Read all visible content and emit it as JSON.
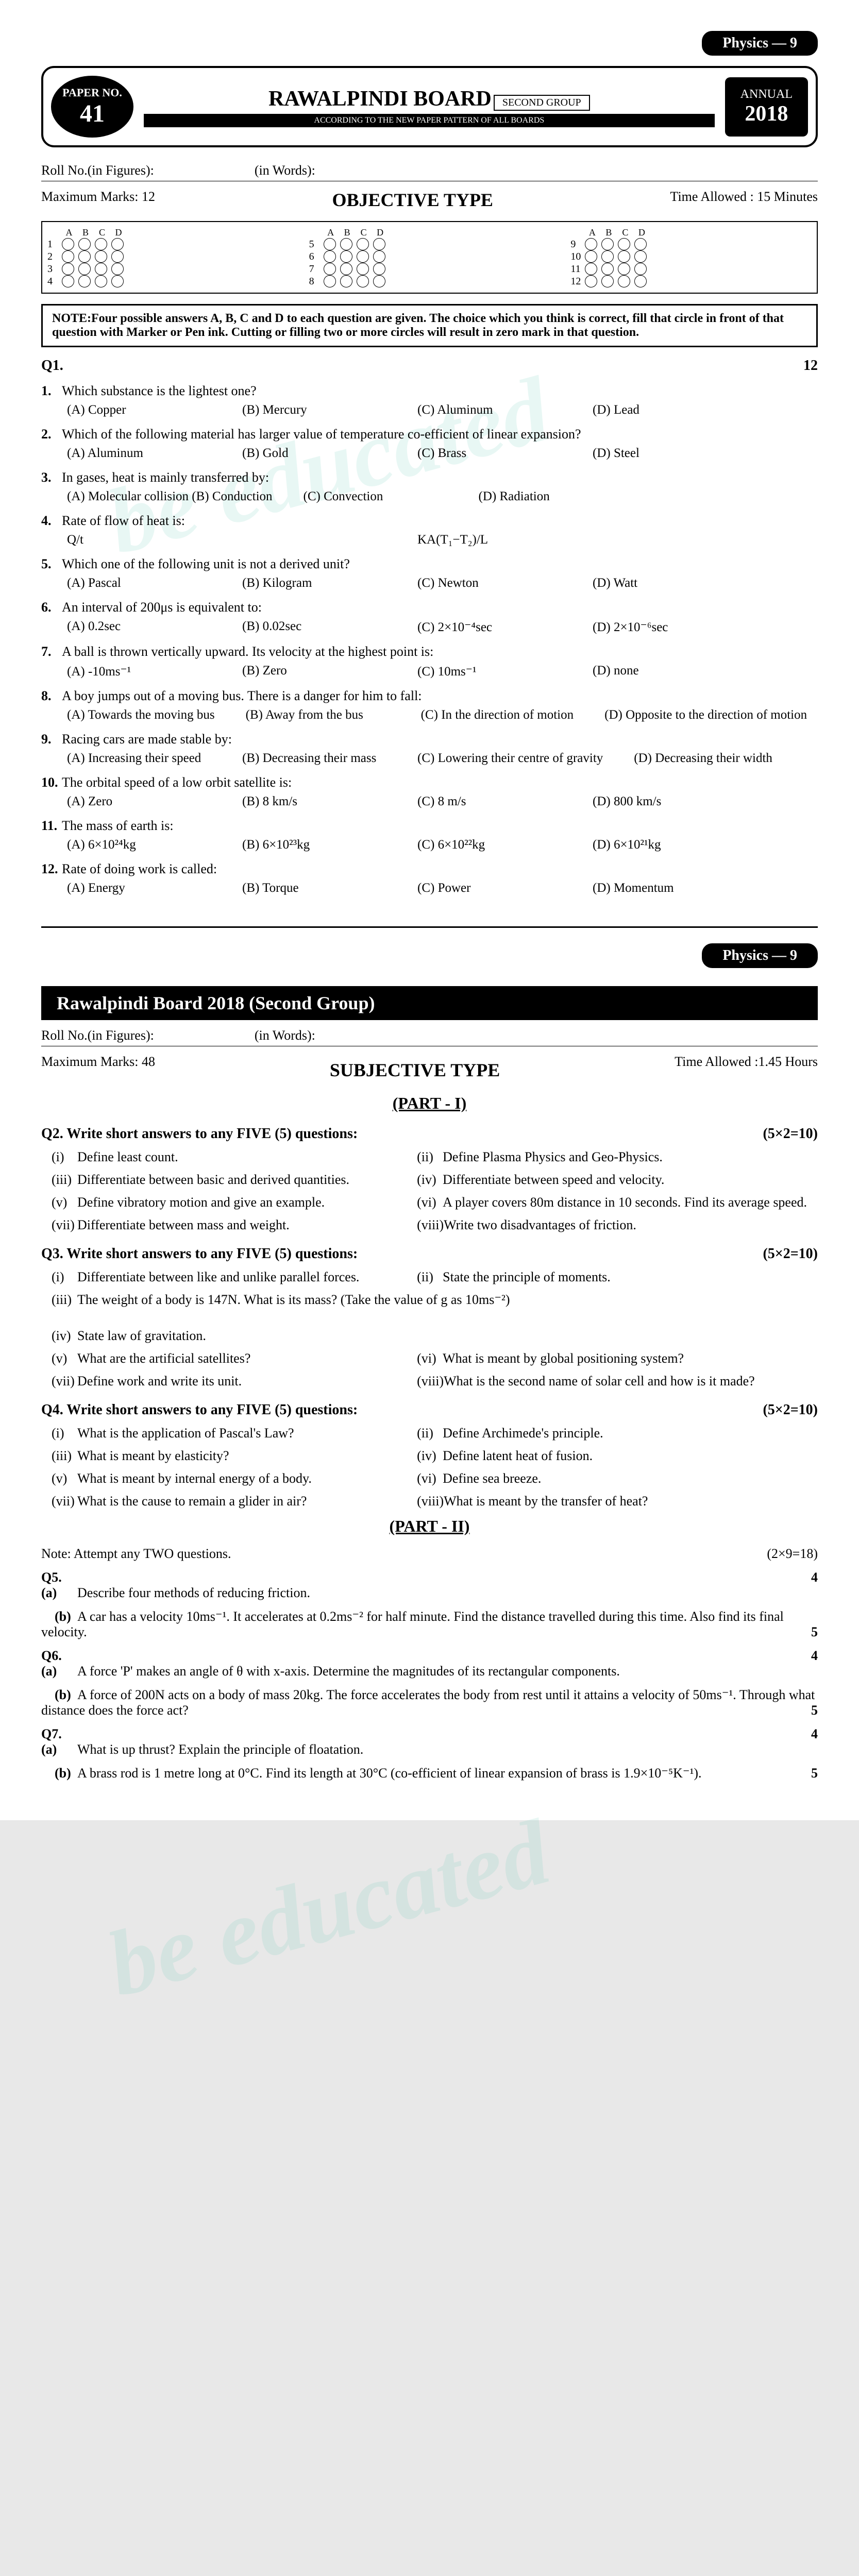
{
  "subject_badge": "Physics — 9",
  "header": {
    "paper_label": "PAPER NO.",
    "paper_num": "41",
    "board_name": "RAWALPINDI BOARD",
    "group": "SECOND GROUP",
    "pattern": "ACCORDING TO THE NEW PAPER PATTERN OF ALL BOARDS",
    "annual": "ANNUAL",
    "year": "2018"
  },
  "roll_figures": "Roll No.(in Figures):",
  "roll_words": "(in Words):",
  "objective": {
    "max_marks_label": "Maximum Marks: 12",
    "title": "OBJECTIVE TYPE",
    "time_label": "Time Allowed : 15 Minutes",
    "bubble_headers": [
      "A",
      "B",
      "C",
      "D"
    ],
    "bubble_groups": [
      [
        1,
        2,
        3,
        4
      ],
      [
        5,
        6,
        7,
        8
      ],
      [
        9,
        10,
        11,
        12
      ]
    ]
  },
  "note": "NOTE:Four possible answers A, B, C and D to each question are given. The choice which you think is correct, fill that circle in front of that question with Marker or Pen ink. Cutting or filling two or more circles will result in zero mark in that question.",
  "q1_header": {
    "label": "Q1.",
    "marks": "12"
  },
  "mcqs": [
    {
      "n": "1.",
      "text": "Which substance is the lightest one?",
      "opts": [
        "(A) Copper",
        "(B) Mercury",
        "(C) Aluminum",
        "(D) Lead"
      ]
    },
    {
      "n": "2.",
      "text": "Which of the following material has larger value of temperature co-efficient of linear expansion?",
      "opts": [
        "(A) Aluminum",
        "(B) Gold",
        "(C) Brass",
        "(D) Steel"
      ]
    },
    {
      "n": "3.",
      "text": "In gases, heat is mainly transferred by:",
      "opts": [
        "(A) Molecular collision (B) Conduction",
        "(C) Convection",
        "(D) Radiation"
      ]
    },
    {
      "n": "4.",
      "text": "Rate of flow of heat is:",
      "opts": [
        "Q/t",
        "",
        "KA(T₁−T₂)/L",
        ""
      ]
    },
    {
      "n": "5.",
      "text": "Which one of the following unit is not a derived unit?",
      "opts": [
        "(A) Pascal",
        "(B) Kilogram",
        "(C) Newton",
        "(D) Watt"
      ]
    },
    {
      "n": "6.",
      "text": "An interval of 200μs is equivalent to:",
      "opts": [
        "(A) 0.2sec",
        "(B) 0.02sec",
        "(C) 2×10⁻⁴sec",
        "(D) 2×10⁻⁶sec"
      ]
    },
    {
      "n": "7.",
      "text": "A ball is thrown vertically upward. Its velocity at the highest point is:",
      "opts": [
        "(A) -10ms⁻¹",
        "(B) Zero",
        "(C) 10ms⁻¹",
        "(D) none"
      ]
    },
    {
      "n": "8.",
      "text": "A boy jumps out of a moving bus. There is a danger for him to fall:",
      "opts": [
        "(A) Towards the moving bus",
        "(B) Away from the bus",
        "(C) In the direction of motion",
        "(D) Opposite to the direction of motion"
      ]
    },
    {
      "n": "9.",
      "text": "Racing cars are made stable by:",
      "opts": [
        "(A) Increasing their speed",
        "(B) Decreasing their mass",
        "(C) Lowering their centre of gravity",
        "(D) Decreasing their width"
      ]
    },
    {
      "n": "10.",
      "text": "The orbital speed of a low orbit satellite is:",
      "opts": [
        "(A) Zero",
        "(B) 8 km/s",
        "(C) 8 m/s",
        "(D) 800 km/s"
      ]
    },
    {
      "n": "11.",
      "text": "The mass of earth is:",
      "opts": [
        "(A) 6×10²⁴kg",
        "(B) 6×10²³kg",
        "(C) 6×10²²kg",
        "(D) 6×10²¹kg"
      ]
    },
    {
      "n": "12.",
      "text": "Rate of doing work is called:",
      "opts": [
        "(A) Energy",
        "(B) Torque",
        "(C) Power",
        "(D) Momentum"
      ]
    }
  ],
  "subjective": {
    "banner": "Rawalpindi Board 2018 (Second Group)",
    "max_marks": "Maximum Marks: 48",
    "title": "SUBJECTIVE TYPE",
    "time": "Time Allowed :1.45 Hours",
    "part1": "(PART - I)"
  },
  "short_questions": [
    {
      "header": "Q2. Write short answers to any FIVE (5) questions:",
      "marks": "(5×2=10)",
      "items": [
        {
          "r": "(i)",
          "t": "Define least count."
        },
        {
          "r": "(ii)",
          "t": "Define Plasma Physics and Geo-Physics."
        },
        {
          "r": "(iii)",
          "t": "Differentiate between basic and derived quantities."
        },
        {
          "r": "(iv)",
          "t": "Differentiate between speed and velocity."
        },
        {
          "r": "(v)",
          "t": "Define vibratory motion and give an example."
        },
        {
          "r": "(vi)",
          "t": "A player covers 80m distance in 10 seconds. Find its average speed."
        },
        {
          "r": "(vii)",
          "t": "Differentiate between mass and weight."
        },
        {
          "r": "(viii)",
          "t": "Write two disadvantages of friction."
        }
      ]
    },
    {
      "header": "Q3. Write short answers to any FIVE (5) questions:",
      "marks": "(5×2=10)",
      "items": [
        {
          "r": "(i)",
          "t": "Differentiate between like and unlike parallel forces."
        },
        {
          "r": "(ii)",
          "t": "State the principle of moments."
        },
        {
          "r": "(iii)",
          "t": "The weight of a body is 147N. What is its mass? (Take the value of g as 10ms⁻²)"
        },
        {
          "r": "(iv)",
          "t": "State law of gravitation."
        },
        {
          "r": "(v)",
          "t": "What are the artificial satellites?"
        },
        {
          "r": "(vi)",
          "t": "What is meant by global positioning system?"
        },
        {
          "r": "(vii)",
          "t": "Define work and write its unit."
        },
        {
          "r": "(viii)",
          "t": "What is the second name of solar cell and how is it made?"
        }
      ]
    },
    {
      "header": "Q4. Write short answers to any FIVE (5) questions:",
      "marks": "(5×2=10)",
      "items": [
        {
          "r": "(i)",
          "t": "What is the application of Pascal's Law?"
        },
        {
          "r": "(ii)",
          "t": "Define Archimede's principle."
        },
        {
          "r": "(iii)",
          "t": "What is meant by elasticity?"
        },
        {
          "r": "(iv)",
          "t": "Define latent heat of fusion."
        },
        {
          "r": "(v)",
          "t": "What is meant by internal energy of a body."
        },
        {
          "r": "(vi)",
          "t": "Define sea breeze."
        },
        {
          "r": "(vii)",
          "t": "What is the cause to remain a glider in air?"
        },
        {
          "r": "(viii)",
          "t": "What is meant by the transfer of heat?"
        }
      ]
    }
  ],
  "part2": {
    "title": "(PART - II)",
    "note": "Note: Attempt any TWO questions.",
    "marks": "(2×9=18)"
  },
  "long_questions": [
    {
      "q": "Q5.",
      "a": "(a)",
      "ta": "Describe four methods of reducing friction.",
      "ma": "4",
      "b": "(b)",
      "tb": "A car has a velocity 10ms⁻¹. It accelerates at 0.2ms⁻² for half minute. Find the distance travelled during this time. Also find its final velocity.",
      "mb": "5"
    },
    {
      "q": "Q6.",
      "a": "(a)",
      "ta": "A force 'P' makes an angle of θ with x-axis. Determine the magnitudes of its rectangular components.",
      "ma": "4",
      "b": "(b)",
      "tb": "A force of 200N acts on a body of mass 20kg. The force accelerates the body from rest until it attains a velocity of 50ms⁻¹. Through what distance does the force act?",
      "mb": "5"
    },
    {
      "q": "Q7.",
      "a": "(a)",
      "ta": "What is up thrust? Explain the principle of floatation.",
      "ma": "4",
      "b": "(b)",
      "tb": "A brass rod is 1 metre long at 0°C. Find its length at 30°C (co-efficient of linear expansion of brass is 1.9×10⁻⁵K⁻¹).",
      "mb": "5"
    }
  ]
}
